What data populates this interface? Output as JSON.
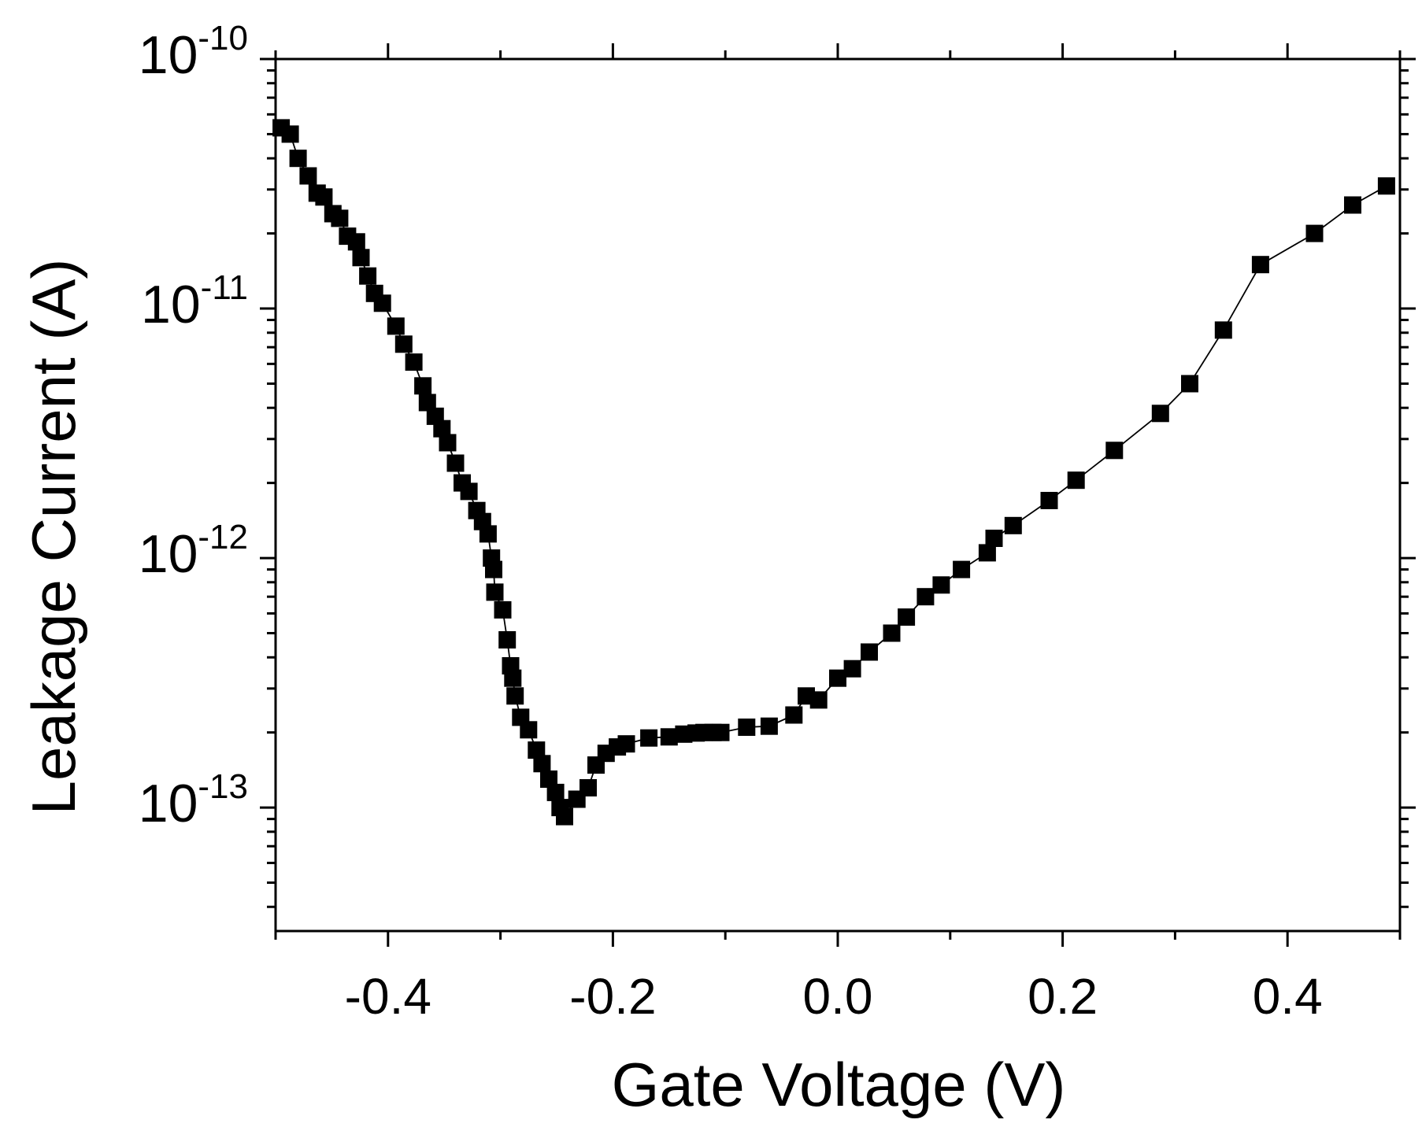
{
  "chart_data": {
    "type": "scatter",
    "title": "",
    "xlabel": "Gate Voltage (V)",
    "ylabel": "Leakage Current (A)",
    "yscale": "log",
    "xlim": [
      -0.5,
      0.5
    ],
    "ylim": [
      3.2e-14,
      1e-10
    ],
    "grid": false,
    "legend": "none",
    "x_ticks": [
      {
        "value": -0.4,
        "label": "-0.4"
      },
      {
        "value": -0.2,
        "label": "-0.2"
      },
      {
        "value": 0.0,
        "label": "0.0"
      },
      {
        "value": 0.2,
        "label": "0.2"
      },
      {
        "value": 0.4,
        "label": "0.4"
      }
    ],
    "y_ticks": [
      {
        "value": 1e-10,
        "base": "10",
        "exp": "-10"
      },
      {
        "value": 1e-11,
        "base": "10",
        "exp": "-11"
      },
      {
        "value": 1e-12,
        "base": "10",
        "exp": "-12"
      },
      {
        "value": 1e-13,
        "base": "10",
        "exp": "-13"
      }
    ],
    "series": [
      {
        "name": "Leakage Current",
        "marker": "square",
        "color": "#000000",
        "points": [
          [
            -0.495,
            5.3e-11
          ],
          [
            -0.487,
            5e-11
          ],
          [
            -0.48,
            4e-11
          ],
          [
            -0.471,
            3.4e-11
          ],
          [
            -0.463,
            2.9e-11
          ],
          [
            -0.457,
            2.8e-11
          ],
          [
            -0.449,
            2.4e-11
          ],
          [
            -0.443,
            2.3e-11
          ],
          [
            -0.436,
            1.95e-11
          ],
          [
            -0.428,
            1.85e-11
          ],
          [
            -0.424,
            1.6e-11
          ],
          [
            -0.418,
            1.35e-11
          ],
          [
            -0.412,
            1.15e-11
          ],
          [
            -0.405,
            1.05e-11
          ],
          [
            -0.393,
            8.5e-12
          ],
          [
            -0.386,
            7.2e-12
          ],
          [
            -0.377,
            6.1e-12
          ],
          [
            -0.369,
            4.9e-12
          ],
          [
            -0.365,
            4.2e-12
          ],
          [
            -0.358,
            3.7e-12
          ],
          [
            -0.352,
            3.3e-12
          ],
          [
            -0.347,
            2.9e-12
          ],
          [
            -0.34,
            2.4e-12
          ],
          [
            -0.334,
            2e-12
          ],
          [
            -0.328,
            1.85e-12
          ],
          [
            -0.321,
            1.55e-12
          ],
          [
            -0.316,
            1.4e-12
          ],
          [
            -0.311,
            1.25e-12
          ],
          [
            -0.308,
            1e-12
          ],
          [
            -0.306,
            9e-13
          ],
          [
            -0.305,
            7.3e-13
          ],
          [
            -0.298,
            6.2e-13
          ],
          [
            -0.294,
            4.7e-13
          ],
          [
            -0.291,
            3.7e-13
          ],
          [
            -0.289,
            3.3e-13
          ],
          [
            -0.287,
            2.8e-13
          ],
          [
            -0.282,
            2.3e-13
          ],
          [
            -0.275,
            2.05e-13
          ],
          [
            -0.268,
            1.7e-13
          ],
          [
            -0.263,
            1.5e-13
          ],
          [
            -0.257,
            1.3e-13
          ],
          [
            -0.251,
            1.15e-13
          ],
          [
            -0.247,
            1e-13
          ],
          [
            -0.243,
            9.2e-14
          ],
          [
            -0.232,
            1.08e-13
          ],
          [
            -0.222,
            1.2e-13
          ],
          [
            -0.215,
            1.48e-13
          ],
          [
            -0.206,
            1.65e-13
          ],
          [
            -0.196,
            1.75e-13
          ],
          [
            -0.188,
            1.8e-13
          ],
          [
            -0.168,
            1.9e-13
          ],
          [
            -0.15,
            1.92e-13
          ],
          [
            -0.137,
            1.97e-13
          ],
          [
            -0.126,
            1.99e-13
          ],
          [
            -0.119,
            2e-13
          ],
          [
            -0.111,
            2e-13
          ],
          [
            -0.104,
            2e-13
          ],
          [
            -0.081,
            2.1e-13
          ],
          [
            -0.061,
            2.12e-13
          ],
          [
            -0.039,
            2.35e-13
          ],
          [
            -0.028,
            2.8e-13
          ],
          [
            -0.017,
            2.7e-13
          ],
          [
            0.0,
            3.3e-13
          ],
          [
            0.013,
            3.6e-13
          ],
          [
            0.028,
            4.2e-13
          ],
          [
            0.048,
            5e-13
          ],
          [
            0.061,
            5.8e-13
          ],
          [
            0.078,
            7e-13
          ],
          [
            0.092,
            7.8e-13
          ],
          [
            0.11,
            9e-13
          ],
          [
            0.133,
            1.05e-12
          ],
          [
            0.139,
            1.2e-12
          ],
          [
            0.156,
            1.35e-12
          ],
          [
            0.188,
            1.7e-12
          ],
          [
            0.212,
            2.05e-12
          ],
          [
            0.246,
            2.7e-12
          ],
          [
            0.287,
            3.8e-12
          ],
          [
            0.313,
            5e-12
          ],
          [
            0.343,
            8.2e-12
          ],
          [
            0.376,
            1.5e-11
          ],
          [
            0.424,
            2e-11
          ],
          [
            0.458,
            2.6e-11
          ],
          [
            0.488,
            3.1e-11
          ]
        ]
      }
    ]
  }
}
